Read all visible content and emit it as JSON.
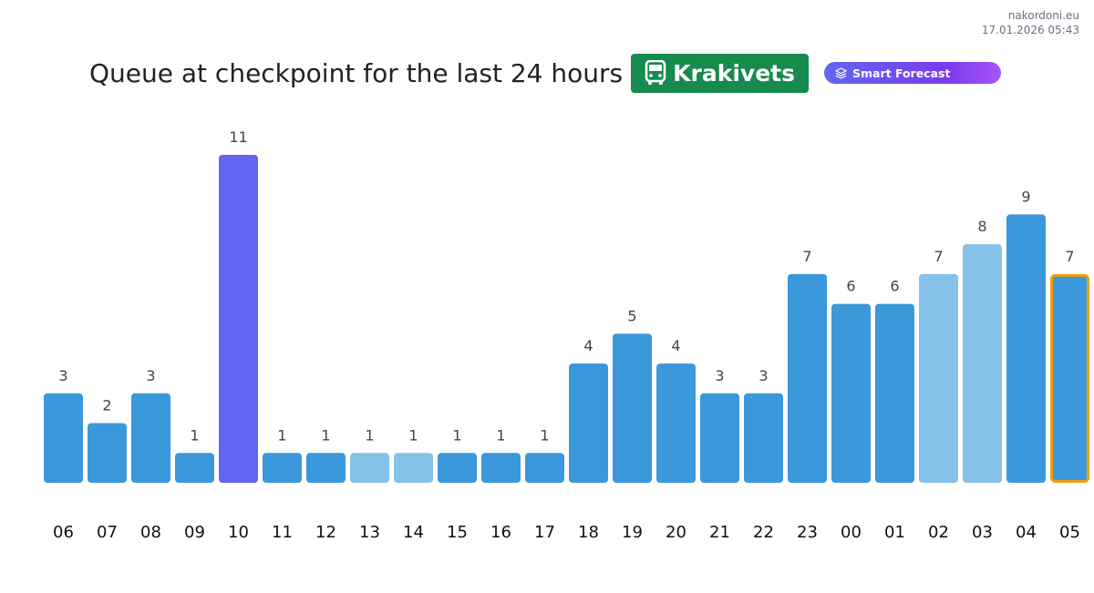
{
  "source": {
    "site": "nakordoni.eu",
    "timestamp": "17.01.2026 05:43"
  },
  "header": {
    "title": "Queue at checkpoint for the last 24 hours",
    "checkpoint": "Krakivets",
    "feature": "Smart Forecast"
  },
  "icons": {
    "checkpoint": "bus-icon",
    "feature": "layers-icon"
  },
  "colors": {
    "bar": "#3a98db",
    "bar_light": "#85c1e9",
    "bar_highlight": "#6366f1",
    "current_outline": "#f59e0b",
    "badge": "#178a4e"
  },
  "chart_data": {
    "type": "bar",
    "categories": [
      "06",
      "07",
      "08",
      "09",
      "10",
      "11",
      "12",
      "13",
      "14",
      "15",
      "16",
      "17",
      "18",
      "19",
      "20",
      "21",
      "22",
      "23",
      "00",
      "01",
      "02",
      "03",
      "04",
      "05"
    ],
    "values": [
      3,
      2,
      3,
      1,
      11,
      1,
      1,
      1,
      1,
      1,
      1,
      1,
      4,
      5,
      4,
      3,
      3,
      7,
      6,
      6,
      7,
      8,
      9,
      7
    ],
    "bar_styles": [
      "normal",
      "normal",
      "normal",
      "normal",
      "highlight",
      "normal",
      "normal",
      "light",
      "light",
      "normal",
      "normal",
      "normal",
      "normal",
      "normal",
      "normal",
      "normal",
      "normal",
      "normal",
      "normal",
      "normal",
      "light",
      "light",
      "normal",
      "current"
    ],
    "title": "Queue at checkpoint for the last 24 hours",
    "xlabel": "",
    "ylabel": "",
    "ylim": [
      0,
      11
    ],
    "grid": false,
    "legend": "none",
    "data_labels": true
  }
}
